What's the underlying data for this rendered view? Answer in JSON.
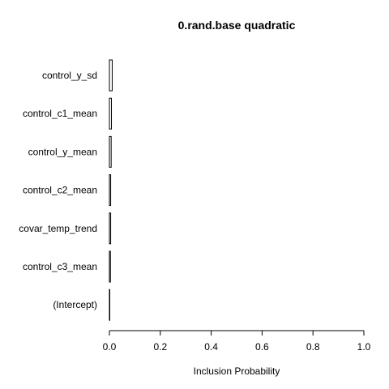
{
  "chart_data": {
    "type": "bar",
    "orientation": "horizontal",
    "title": "0.rand.base quadratic",
    "xlabel": "Inclusion Probability",
    "ylabel": "",
    "xlim": [
      0,
      1
    ],
    "xticks": [
      "0.0",
      "0.2",
      "0.4",
      "0.6",
      "0.8",
      "1.0"
    ],
    "categories": [
      "control_y_sd",
      "control_c1_mean",
      "control_y_mean",
      "control_c2_mean",
      "covar_temp_trend",
      "control_c3_mean",
      "(Intercept)"
    ],
    "values": [
      0.011,
      0.008,
      0.007,
      0.005,
      0.005,
      0.004,
      0.001
    ],
    "grid": false,
    "legend": "none"
  }
}
